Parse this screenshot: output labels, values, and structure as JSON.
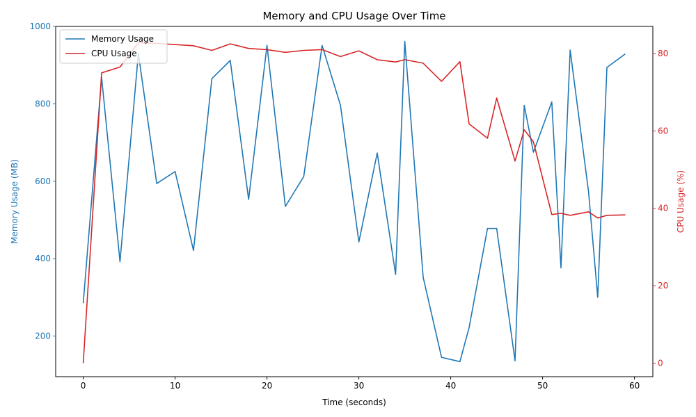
{
  "chart_data": {
    "type": "line",
    "title": "Memory and CPU Usage Over Time",
    "xlabel": "Time (seconds)",
    "ylabel_left": "Memory Usage (MB)",
    "ylabel_right": "CPU Usage (%)",
    "xlim": [
      -3,
      62
    ],
    "ylim_left": [
      95,
      1000
    ],
    "ylim_right": [
      -3.5,
      87
    ],
    "x_ticks": [
      0,
      10,
      20,
      30,
      40,
      50,
      60
    ],
    "y_ticks_left": [
      200,
      400,
      600,
      800,
      1000
    ],
    "y_ticks_right": [
      0,
      20,
      40,
      60,
      80
    ],
    "grid": false,
    "legend_position": "upper left",
    "colors": {
      "memory": "#1f77b4",
      "cpu": "#d62728"
    },
    "series": [
      {
        "name": "Memory Usage",
        "axis": "left",
        "points": [
          [
            0,
            285
          ],
          [
            2,
            868
          ],
          [
            4,
            392
          ],
          [
            6,
            930
          ],
          [
            8,
            594
          ],
          [
            10,
            625
          ],
          [
            12,
            421
          ],
          [
            14,
            865
          ],
          [
            16,
            912
          ],
          [
            18,
            553
          ],
          [
            20,
            951
          ],
          [
            22,
            535
          ],
          [
            24,
            612
          ],
          [
            26,
            951
          ],
          [
            28,
            796
          ],
          [
            30,
            443
          ],
          [
            32,
            673
          ],
          [
            34,
            359
          ],
          [
            35,
            961
          ],
          [
            37,
            352
          ],
          [
            39,
            145
          ],
          [
            41,
            134
          ],
          [
            42,
            222
          ],
          [
            44,
            478
          ],
          [
            45,
            478
          ],
          [
            47,
            136
          ],
          [
            48,
            796
          ],
          [
            49,
            675
          ],
          [
            51,
            805
          ],
          [
            52,
            376
          ],
          [
            53,
            939
          ],
          [
            55,
            573
          ],
          [
            56,
            300
          ],
          [
            57,
            894
          ],
          [
            59,
            929
          ]
        ]
      },
      {
        "name": "CPU Usage",
        "axis": "right",
        "points": [
          [
            0,
            0
          ],
          [
            2,
            75
          ],
          [
            4,
            76.5
          ],
          [
            6,
            82.8
          ],
          [
            8,
            82.6
          ],
          [
            12,
            82
          ],
          [
            14,
            80.8
          ],
          [
            16,
            82.5
          ],
          [
            18,
            81.3
          ],
          [
            20,
            81
          ],
          [
            22,
            80.3
          ],
          [
            24,
            80.8
          ],
          [
            26,
            81
          ],
          [
            28,
            79.2
          ],
          [
            30,
            80.7
          ],
          [
            32,
            78.4
          ],
          [
            34,
            77.8
          ],
          [
            35,
            78.4
          ],
          [
            37,
            77.5
          ],
          [
            39,
            72.8
          ],
          [
            41,
            77.9
          ],
          [
            42,
            61.8
          ],
          [
            44,
            58.1
          ],
          [
            45,
            68.5
          ],
          [
            47,
            52.2
          ],
          [
            48,
            60.3
          ],
          [
            49,
            57.2
          ],
          [
            51,
            38.4
          ],
          [
            52,
            38.7
          ],
          [
            53,
            38.2
          ],
          [
            55,
            39.1
          ],
          [
            56,
            37.5
          ],
          [
            57,
            38.2
          ],
          [
            59,
            38.3
          ]
        ]
      }
    ]
  }
}
